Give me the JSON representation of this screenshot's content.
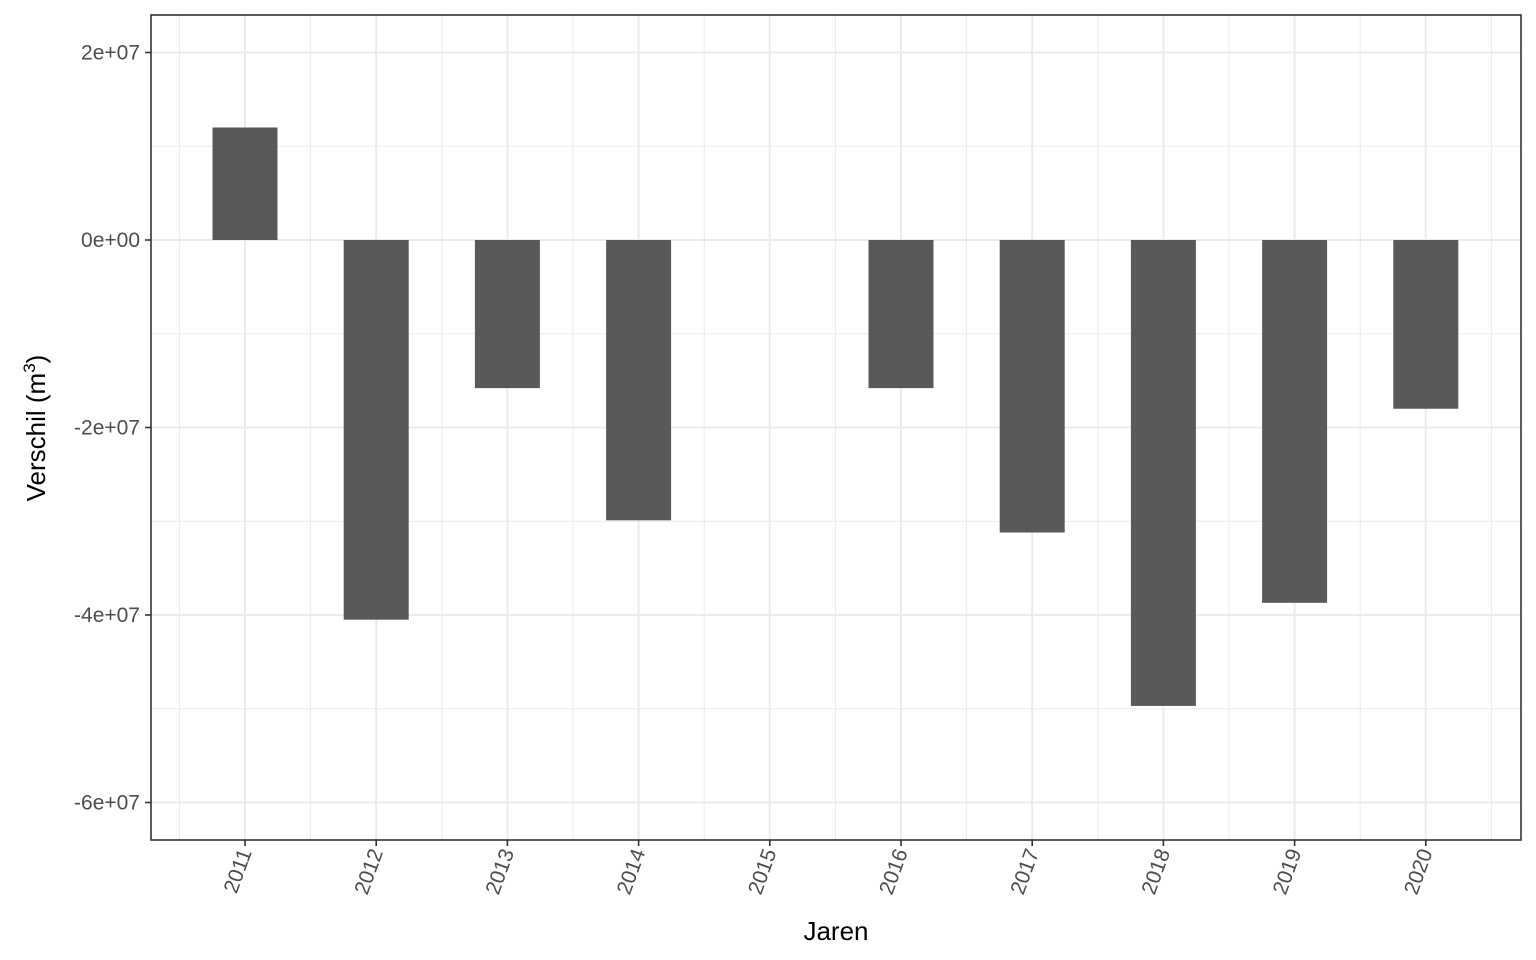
{
  "chart_data": {
    "type": "bar",
    "xlabel": "Jaren",
    "ylabel": "Verschil (m",
    "ylabel_superscript": "3",
    "ylabel_close": ")",
    "categories": [
      "2011",
      "2012",
      "2013",
      "2014",
      "2015",
      "2016",
      "2017",
      "2018",
      "2019",
      "2020"
    ],
    "values": [
      12000000,
      -40500000,
      -15800000,
      -29900000,
      null,
      -15800000,
      -31200000,
      -49700000,
      -38700000,
      -18000000
    ],
    "ylim": [
      -64000000,
      24000000
    ],
    "y_ticks": [
      20000000,
      0,
      -20000000,
      -40000000,
      -60000000
    ],
    "y_tick_labels": [
      "2e+07",
      "0e+00",
      "-2e+07",
      "-4e+07",
      "-6e+07"
    ],
    "grid": true,
    "bar_color": "#595959",
    "grid_color": "#ebebeb",
    "panel_border_color": "#333333"
  }
}
